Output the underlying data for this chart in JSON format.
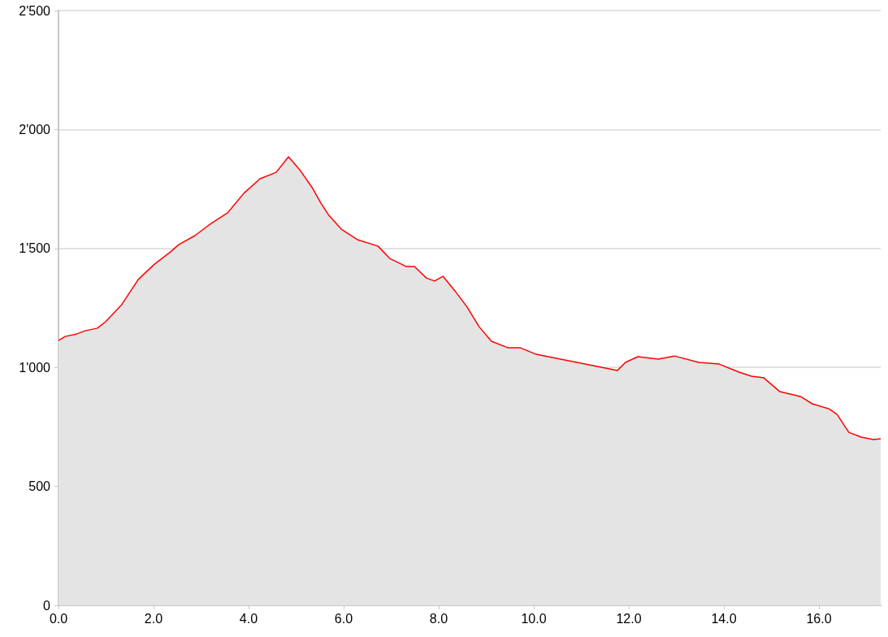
{
  "chart_data": {
    "type": "area",
    "grid": "y",
    "x": [
      0,
      0.14,
      0.39,
      0.56,
      0.82,
      0.99,
      1.33,
      1.68,
      2.02,
      2.36,
      2.53,
      2.87,
      3.21,
      3.56,
      3.9,
      4.24,
      4.58,
      4.84,
      5.09,
      5.35,
      5.52,
      5.69,
      5.95,
      6.29,
      6.72,
      6.97,
      7.32,
      7.49,
      7.74,
      7.91,
      8.09,
      8.34,
      8.6,
      8.85,
      9.11,
      9.45,
      9.71,
      10.05,
      10.39,
      11.08,
      11.76,
      11.93,
      12.19,
      12.62,
      12.96,
      13.47,
      13.9,
      14.32,
      14.58,
      14.84,
      15.18,
      15.61,
      15.86,
      16.21,
      16.38,
      16.63,
      16.89,
      17.15,
      17.3
    ],
    "series": [
      {
        "color": "#ff0000",
        "values": [
          1113,
          1130,
          1141,
          1154,
          1165,
          1192,
          1264,
          1370,
          1434,
          1486,
          1516,
          1554,
          1605,
          1650,
          1732,
          1793,
          1820,
          1885,
          1827,
          1752,
          1691,
          1639,
          1581,
          1537,
          1510,
          1458,
          1424,
          1424,
          1376,
          1363,
          1383,
          1322,
          1253,
          1171,
          1110,
          1083,
          1083,
          1055,
          1042,
          1014,
          987,
          1021,
          1045,
          1035,
          1048,
          1021,
          1014,
          980,
          963,
          956,
          898,
          878,
          847,
          826,
          803,
          727,
          707,
          697,
          700
        ]
      }
    ],
    "xlim": [
      0,
      17.3
    ],
    "xticks": [
      {
        "value": 0,
        "label": "0.0"
      },
      {
        "value": 2,
        "label": "2.0"
      },
      {
        "value": 4,
        "label": "4.0"
      },
      {
        "value": 6,
        "label": "6.0"
      },
      {
        "value": 8,
        "label": "8.0"
      },
      {
        "value": 10,
        "label": "10.0"
      },
      {
        "value": 12,
        "label": "12.0"
      },
      {
        "value": 14,
        "label": "14.0"
      },
      {
        "value": 16,
        "label": "16.0"
      }
    ],
    "ylim": [
      0,
      2500
    ],
    "yticks": [
      0,
      500,
      {
        "value": 1000,
        "label": "1'000"
      },
      {
        "value": 1500,
        "label": "1'500"
      },
      {
        "value": 2000,
        "label": "2'000"
      },
      {
        "value": 2500,
        "label": "2'500"
      }
    ]
  }
}
